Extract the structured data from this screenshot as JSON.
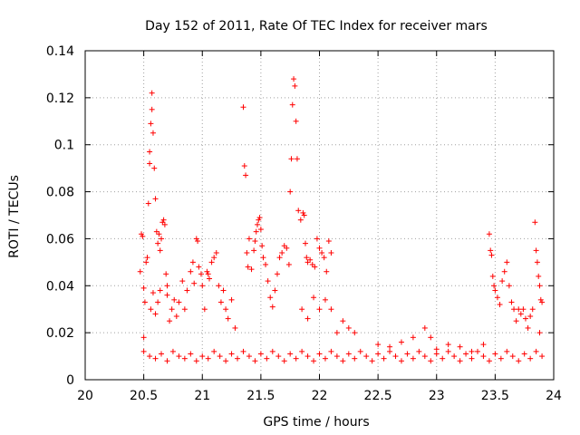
{
  "chart_data": {
    "type": "scatter",
    "title": "Day 152 of 2011, Rate Of TEC Index for receiver mars",
    "xlabel": "GPS time / hours",
    "ylabel": "ROTI / TECUs",
    "xlim": [
      20,
      24
    ],
    "ylim": [
      0,
      0.14
    ],
    "xticks": [
      "20",
      "20.5",
      "21",
      "21.5",
      "22",
      "22.5",
      "23",
      "23.5",
      "24"
    ],
    "yticks": [
      "0",
      "0.02",
      "0.04",
      "0.06",
      "0.08",
      "0.1",
      "0.12",
      "0.14"
    ],
    "grid": true,
    "marker": "+",
    "color": "#ff0000",
    "series": [
      {
        "name": "ROTI",
        "points": [
          [
            20.47,
            0.046
          ],
          [
            20.48,
            0.062
          ],
          [
            20.49,
            0.061
          ],
          [
            20.5,
            0.039
          ],
          [
            20.5,
            0.018
          ],
          [
            20.51,
            0.033
          ],
          [
            20.52,
            0.05
          ],
          [
            20.53,
            0.052
          ],
          [
            20.54,
            0.075
          ],
          [
            20.55,
            0.097
          ],
          [
            20.55,
            0.092
          ],
          [
            20.56,
            0.109
          ],
          [
            20.57,
            0.115
          ],
          [
            20.57,
            0.122
          ],
          [
            20.58,
            0.105
          ],
          [
            20.59,
            0.09
          ],
          [
            20.6,
            0.077
          ],
          [
            20.61,
            0.063
          ],
          [
            20.62,
            0.058
          ],
          [
            20.63,
            0.062
          ],
          [
            20.64,
            0.055
          ],
          [
            20.65,
            0.06
          ],
          [
            20.66,
            0.067
          ],
          [
            20.67,
            0.068
          ],
          [
            20.68,
            0.066
          ],
          [
            20.69,
            0.045
          ],
          [
            20.7,
            0.04
          ],
          [
            20.58,
            0.037
          ],
          [
            20.56,
            0.03
          ],
          [
            20.6,
            0.028
          ],
          [
            20.62,
            0.033
          ],
          [
            20.64,
            0.038
          ],
          [
            20.7,
            0.036
          ],
          [
            20.72,
            0.025
          ],
          [
            20.74,
            0.03
          ],
          [
            20.76,
            0.034
          ],
          [
            20.78,
            0.027
          ],
          [
            20.8,
            0.033
          ],
          [
            20.83,
            0.042
          ],
          [
            20.85,
            0.03
          ],
          [
            20.87,
            0.038
          ],
          [
            20.9,
            0.046
          ],
          [
            20.92,
            0.05
          ],
          [
            20.93,
            0.041
          ],
          [
            20.95,
            0.06
          ],
          [
            20.96,
            0.059
          ],
          [
            20.97,
            0.048
          ],
          [
            20.99,
            0.045
          ],
          [
            21.0,
            0.04
          ],
          [
            21.02,
            0.03
          ],
          [
            21.04,
            0.046
          ],
          [
            21.05,
            0.045
          ],
          [
            21.06,
            0.043
          ],
          [
            21.08,
            0.05
          ],
          [
            21.1,
            0.052
          ],
          [
            21.12,
            0.054
          ],
          [
            21.14,
            0.04
          ],
          [
            21.16,
            0.033
          ],
          [
            21.18,
            0.038
          ],
          [
            21.2,
            0.03
          ],
          [
            21.22,
            0.026
          ],
          [
            21.25,
            0.034
          ],
          [
            21.28,
            0.022
          ],
          [
            21.35,
            0.116
          ],
          [
            21.36,
            0.091
          ],
          [
            21.37,
            0.087
          ],
          [
            21.38,
            0.054
          ],
          [
            21.39,
            0.048
          ],
          [
            21.4,
            0.06
          ],
          [
            21.42,
            0.047
          ],
          [
            21.44,
            0.055
          ],
          [
            21.45,
            0.059
          ],
          [
            21.46,
            0.063
          ],
          [
            21.47,
            0.066
          ],
          [
            21.48,
            0.068
          ],
          [
            21.49,
            0.069
          ],
          [
            21.5,
            0.064
          ],
          [
            21.51,
            0.057
          ],
          [
            21.52,
            0.052
          ],
          [
            21.54,
            0.049
          ],
          [
            21.56,
            0.042
          ],
          [
            21.58,
            0.035
          ],
          [
            21.6,
            0.031
          ],
          [
            21.62,
            0.038
          ],
          [
            21.64,
            0.045
          ],
          [
            21.66,
            0.052
          ],
          [
            21.68,
            0.054
          ],
          [
            21.7,
            0.057
          ],
          [
            21.72,
            0.056
          ],
          [
            21.74,
            0.049
          ],
          [
            21.75,
            0.08
          ],
          [
            21.76,
            0.094
          ],
          [
            21.77,
            0.117
          ],
          [
            21.78,
            0.128
          ],
          [
            21.79,
            0.125
          ],
          [
            21.8,
            0.11
          ],
          [
            21.81,
            0.094
          ],
          [
            21.82,
            0.072
          ],
          [
            21.84,
            0.068
          ],
          [
            21.86,
            0.071
          ],
          [
            21.87,
            0.07
          ],
          [
            21.88,
            0.058
          ],
          [
            21.89,
            0.052
          ],
          [
            21.9,
            0.05
          ],
          [
            21.92,
            0.051
          ],
          [
            21.94,
            0.049
          ],
          [
            21.96,
            0.048
          ],
          [
            21.98,
            0.06
          ],
          [
            22.0,
            0.056
          ],
          [
            22.02,
            0.054
          ],
          [
            22.04,
            0.052
          ],
          [
            22.06,
            0.046
          ],
          [
            22.08,
            0.059
          ],
          [
            22.1,
            0.054
          ],
          [
            21.85,
            0.03
          ],
          [
            21.9,
            0.026
          ],
          [
            21.95,
            0.035
          ],
          [
            22.0,
            0.03
          ],
          [
            22.05,
            0.034
          ],
          [
            22.1,
            0.03
          ],
          [
            22.15,
            0.02
          ],
          [
            22.2,
            0.025
          ],
          [
            22.25,
            0.022
          ],
          [
            22.3,
            0.02
          ],
          [
            22.5,
            0.015
          ],
          [
            22.6,
            0.014
          ],
          [
            22.7,
            0.016
          ],
          [
            22.8,
            0.018
          ],
          [
            22.9,
            0.022
          ],
          [
            22.95,
            0.018
          ],
          [
            23.0,
            0.013
          ],
          [
            23.1,
            0.015
          ],
          [
            23.2,
            0.014
          ],
          [
            23.3,
            0.012
          ],
          [
            23.4,
            0.015
          ],
          [
            23.45,
            0.062
          ],
          [
            23.46,
            0.055
          ],
          [
            23.47,
            0.053
          ],
          [
            23.48,
            0.044
          ],
          [
            23.49,
            0.04
          ],
          [
            23.5,
            0.038
          ],
          [
            23.52,
            0.035
          ],
          [
            23.54,
            0.032
          ],
          [
            23.56,
            0.042
          ],
          [
            23.58,
            0.046
          ],
          [
            23.6,
            0.05
          ],
          [
            23.62,
            0.04
          ],
          [
            23.64,
            0.033
          ],
          [
            23.66,
            0.03
          ],
          [
            23.68,
            0.025
          ],
          [
            23.7,
            0.03
          ],
          [
            23.72,
            0.028
          ],
          [
            23.74,
            0.03
          ],
          [
            23.76,
            0.026
          ],
          [
            23.78,
            0.022
          ],
          [
            23.8,
            0.027
          ],
          [
            23.82,
            0.03
          ],
          [
            23.84,
            0.067
          ],
          [
            23.85,
            0.055
          ],
          [
            23.86,
            0.05
          ],
          [
            23.87,
            0.044
          ],
          [
            23.88,
            0.04
          ],
          [
            23.89,
            0.034
          ],
          [
            23.9,
            0.033
          ],
          [
            23.88,
            0.02
          ],
          [
            20.5,
            0.012
          ],
          [
            20.55,
            0.01
          ],
          [
            20.6,
            0.009
          ],
          [
            20.65,
            0.011
          ],
          [
            20.7,
            0.008
          ],
          [
            20.75,
            0.012
          ],
          [
            20.8,
            0.01
          ],
          [
            20.85,
            0.009
          ],
          [
            20.9,
            0.011
          ],
          [
            20.95,
            0.008
          ],
          [
            21.0,
            0.01
          ],
          [
            21.05,
            0.009
          ],
          [
            21.1,
            0.012
          ],
          [
            21.15,
            0.01
          ],
          [
            21.2,
            0.008
          ],
          [
            21.25,
            0.011
          ],
          [
            21.3,
            0.009
          ],
          [
            21.35,
            0.012
          ],
          [
            21.4,
            0.01
          ],
          [
            21.45,
            0.008
          ],
          [
            21.5,
            0.011
          ],
          [
            21.55,
            0.009
          ],
          [
            21.6,
            0.012
          ],
          [
            21.65,
            0.01
          ],
          [
            21.7,
            0.008
          ],
          [
            21.75,
            0.011
          ],
          [
            21.8,
            0.009
          ],
          [
            21.85,
            0.012
          ],
          [
            21.9,
            0.01
          ],
          [
            21.95,
            0.008
          ],
          [
            22.0,
            0.011
          ],
          [
            22.05,
            0.009
          ],
          [
            22.1,
            0.012
          ],
          [
            22.15,
            0.01
          ],
          [
            22.2,
            0.008
          ],
          [
            22.25,
            0.011
          ],
          [
            22.3,
            0.009
          ],
          [
            22.35,
            0.012
          ],
          [
            22.4,
            0.01
          ],
          [
            22.45,
            0.008
          ],
          [
            22.5,
            0.011
          ],
          [
            22.55,
            0.009
          ],
          [
            22.6,
            0.012
          ],
          [
            22.65,
            0.01
          ],
          [
            22.7,
            0.008
          ],
          [
            22.75,
            0.011
          ],
          [
            22.8,
            0.009
          ],
          [
            22.85,
            0.012
          ],
          [
            22.9,
            0.01
          ],
          [
            22.95,
            0.008
          ],
          [
            23.0,
            0.011
          ],
          [
            23.05,
            0.009
          ],
          [
            23.1,
            0.012
          ],
          [
            23.15,
            0.01
          ],
          [
            23.2,
            0.008
          ],
          [
            23.25,
            0.011
          ],
          [
            23.3,
            0.009
          ],
          [
            23.35,
            0.012
          ],
          [
            23.4,
            0.01
          ],
          [
            23.45,
            0.008
          ],
          [
            23.5,
            0.011
          ],
          [
            23.55,
            0.009
          ],
          [
            23.6,
            0.012
          ],
          [
            23.65,
            0.01
          ],
          [
            23.7,
            0.008
          ],
          [
            23.75,
            0.011
          ],
          [
            23.8,
            0.009
          ],
          [
            23.85,
            0.012
          ],
          [
            23.9,
            0.01
          ]
        ]
      }
    ]
  }
}
